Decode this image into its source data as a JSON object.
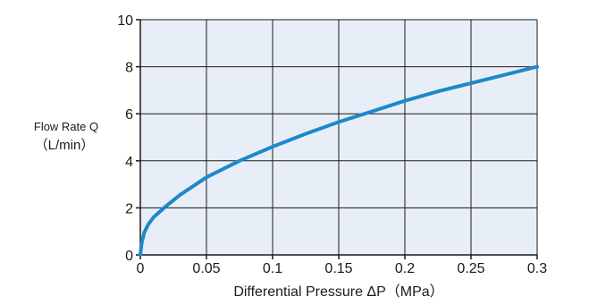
{
  "chart_data": {
    "type": "line",
    "title": "",
    "xlabel": "Differential Pressure ΔP（MPa）",
    "ylabel_line1": "Flow Rate Q",
    "ylabel_line2": "（L/min）",
    "xlim": [
      0,
      0.3
    ],
    "ylim": [
      0,
      10
    ],
    "xticks": [
      0,
      0.05,
      0.1,
      0.15,
      0.2,
      0.25,
      0.3
    ],
    "xtick_labels": [
      "0",
      "0.05",
      "0.1",
      "0.15",
      "0.2",
      "0.25",
      "0.3"
    ],
    "yticks": [
      0,
      2,
      4,
      6,
      8,
      10
    ],
    "ytick_labels": [
      "0",
      "2",
      "4",
      "6",
      "8",
      "10"
    ],
    "grid": true,
    "plot_background": "#e8eef8",
    "line_color": "#1e88c8",
    "series": [
      {
        "x": [
          0,
          0.001,
          0.003,
          0.006,
          0.01,
          0.02,
          0.03,
          0.05,
          0.075,
          0.1,
          0.125,
          0.15,
          0.175,
          0.2,
          0.225,
          0.25,
          0.275,
          0.3
        ],
        "y": [
          0,
          0.5,
          0.95,
          1.3,
          1.6,
          2.1,
          2.55,
          3.3,
          4.0,
          4.6,
          5.15,
          5.65,
          6.1,
          6.55,
          6.95,
          7.3,
          7.65,
          8.0
        ]
      }
    ]
  }
}
